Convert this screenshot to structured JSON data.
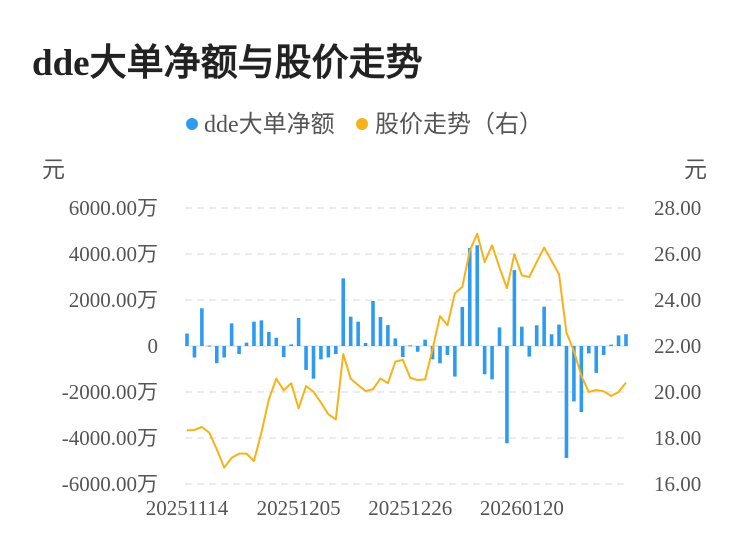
{
  "title": "dde大单净额与股价走势",
  "chart_data": {
    "type": "bar+line",
    "title": "dde大单净额与股价走势",
    "left_unit": "元",
    "right_unit": "元",
    "legend_position": "top-center",
    "grid": true,
    "colors": {
      "bar": "#2e9bf0",
      "line": "#f7b219"
    },
    "left_ticks": [
      "6000.00万",
      "4000.00万",
      "2000.00万",
      "0",
      "-2000.00万",
      "-4000.00万",
      "-6000.00万"
    ],
    "left_tick_values": [
      6000,
      4000,
      2000,
      0,
      -2000,
      -4000,
      -6000
    ],
    "right_ticks": [
      "28.00",
      "26.00",
      "24.00",
      "22.00",
      "20.00",
      "18.00",
      "16.00"
    ],
    "right_tick_values": [
      28,
      26,
      24,
      22,
      20,
      18,
      16
    ],
    "ylim_left": [
      -6000,
      6000
    ],
    "ylim_right": [
      16,
      28
    ],
    "x_tick_labels": [
      {
        "index": 0,
        "label": "20251114"
      },
      {
        "index": 15,
        "label": "20251205"
      },
      {
        "index": 30,
        "label": "20251226"
      },
      {
        "index": 45,
        "label": "20260120"
      }
    ],
    "series": [
      {
        "name": "dde大单净额",
        "type": "bar",
        "axis": "left",
        "unit": "万元",
        "values": [
          540,
          -500,
          1640,
          20,
          -750,
          -500,
          985,
          -350,
          145,
          1060,
          1115,
          610,
          360,
          -480,
          70,
          1220,
          -1040,
          -1420,
          -580,
          -500,
          -350,
          2940,
          1275,
          1060,
          130,
          1960,
          1260,
          910,
          330,
          -480,
          30,
          -250,
          275,
          -580,
          -750,
          -390,
          -1330,
          1700,
          4260,
          4380,
          -1230,
          -1450,
          810,
          -4230,
          3300,
          840,
          -460,
          900,
          1710,
          510,
          930,
          -4870,
          -2410,
          -2870,
          -320,
          -1170,
          -390,
          60,
          460,
          510
        ]
      },
      {
        "name": "股价走势（右）",
        "type": "line",
        "axis": "right",
        "values": [
          18.33,
          18.35,
          18.48,
          18.23,
          17.51,
          16.71,
          17.14,
          17.32,
          17.32,
          17.0,
          18.23,
          19.68,
          20.58,
          20.07,
          20.38,
          19.29,
          20.26,
          20.01,
          19.54,
          19.03,
          18.81,
          21.65,
          20.58,
          20.3,
          20.04,
          20.12,
          20.59,
          20.38,
          21.32,
          21.4,
          20.62,
          20.52,
          20.55,
          21.86,
          23.3,
          22.9,
          24.29,
          24.57,
          26.13,
          26.88,
          25.65,
          26.38,
          25.41,
          24.51,
          25.99,
          25.07,
          25.0,
          25.65,
          26.28,
          25.7,
          25.12,
          22.58,
          21.78,
          20.7,
          20.0,
          20.09,
          20.03,
          19.83,
          20.0,
          20.41
        ]
      }
    ]
  }
}
